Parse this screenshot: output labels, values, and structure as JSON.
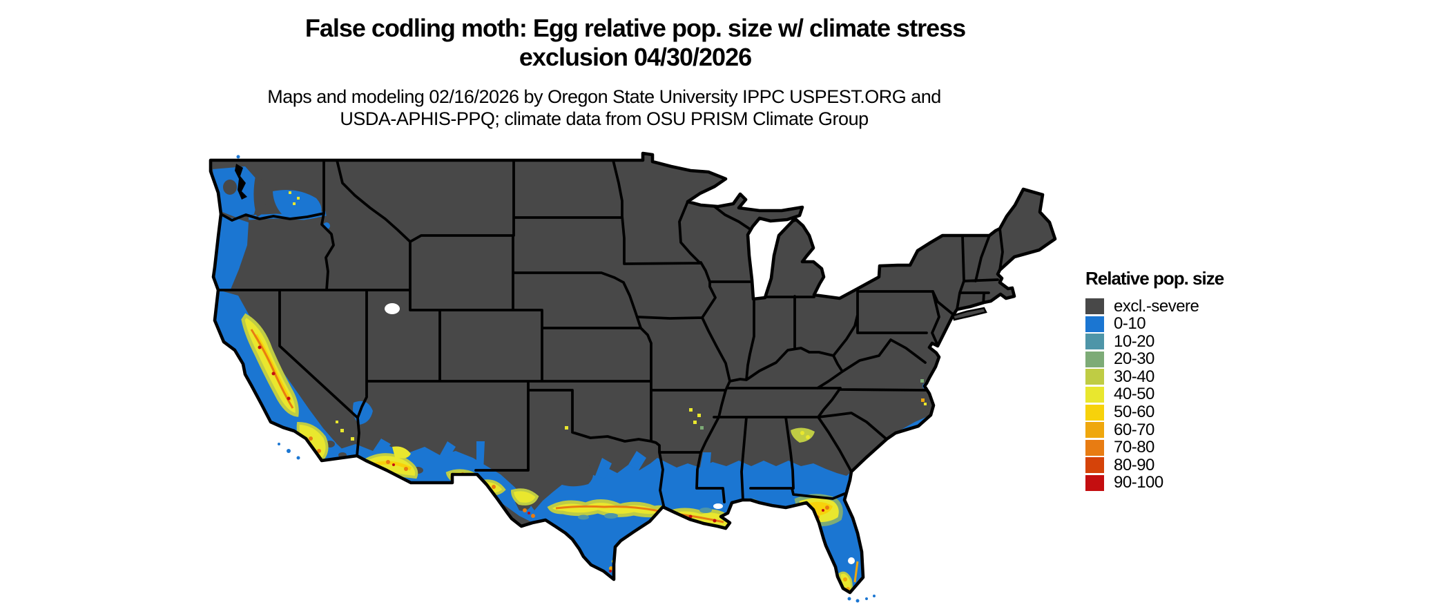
{
  "title": {
    "line1": "False codling moth: Egg relative pop. size w/ climate stress",
    "line2": "exclusion 04/30/2026"
  },
  "subtitle": {
    "line1": "Maps and modeling 02/16/2026 by Oregon State University IPPC USPEST.ORG and",
    "line2": "USDA-APHIS-PPQ; climate data from OSU PRISM Climate Group"
  },
  "legend": {
    "title": "Relative pop. size",
    "items": [
      {
        "key": "excl",
        "label": "excl.-severe",
        "color": "#484848"
      },
      {
        "key": "b0_10",
        "label": "0-10",
        "color": "#1b76d2"
      },
      {
        "key": "b10_20",
        "label": "10-20",
        "color": "#4e95a8"
      },
      {
        "key": "b20_30",
        "label": "20-30",
        "color": "#7dab77"
      },
      {
        "key": "b30_40",
        "label": "30-40",
        "color": "#bfcc44"
      },
      {
        "key": "b40_50",
        "label": "40-50",
        "color": "#e9e72e"
      },
      {
        "key": "b50_60",
        "label": "50-60",
        "color": "#f7d20b"
      },
      {
        "key": "b60_70",
        "label": "60-70",
        "color": "#efa70d"
      },
      {
        "key": "b70_80",
        "label": "70-80",
        "color": "#e87c12"
      },
      {
        "key": "b80_90",
        "label": "80-90",
        "color": "#d54309"
      },
      {
        "key": "b90_100",
        "label": "90-100",
        "color": "#c40e10"
      }
    ]
  },
  "map": {
    "region": "Contiguous United States",
    "border_color": "#000000",
    "water_color": "#ffffff"
  }
}
